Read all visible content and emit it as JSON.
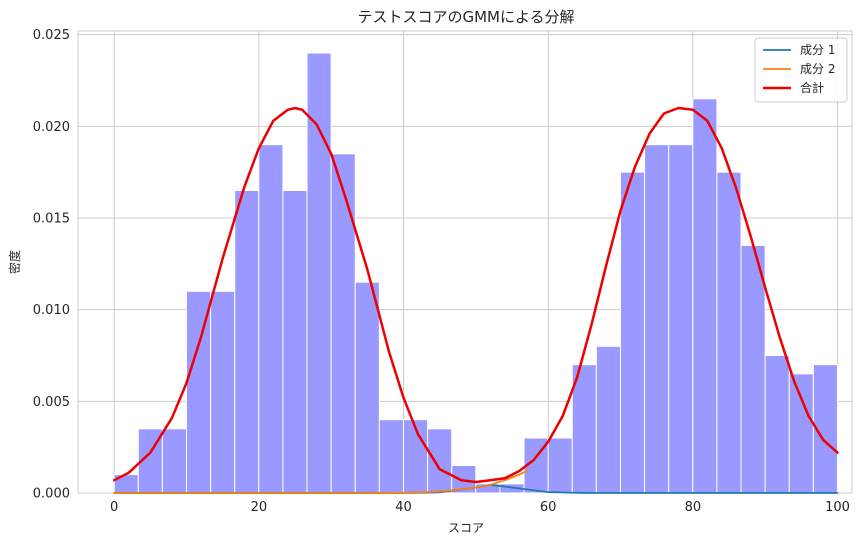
{
  "chart_data": {
    "type": "bar",
    "title": "テストスコアのGMMによる分解",
    "xlabel": "スコア",
    "ylabel": "密度",
    "xlim": [
      -5,
      102
    ],
    "ylim": [
      0,
      0.0252
    ],
    "xticks": [
      0,
      20,
      40,
      60,
      80,
      100
    ],
    "xtick_labels": [
      "0",
      "20",
      "40",
      "60",
      "80",
      "100"
    ],
    "yticks": [
      0,
      0.005,
      0.01,
      0.015,
      0.02,
      0.025
    ],
    "ytick_labels": [
      "0.000",
      "0.005",
      "0.010",
      "0.015",
      "0.020",
      "0.025"
    ],
    "grid": true,
    "legend_position": "top-right",
    "histogram": {
      "bin_width": 3.333,
      "bin_start": 0,
      "color": "#9999ff",
      "values": [
        0.001,
        0.0035,
        0.0035,
        0.011,
        0.011,
        0.0165,
        0.019,
        0.0165,
        0.024,
        0.0185,
        0.0115,
        0.004,
        0.004,
        0.0035,
        0.0015,
        0.0005,
        0.0005,
        0.003,
        0.003,
        0.007,
        0.008,
        0.0175,
        0.019,
        0.019,
        0.0215,
        0.0175,
        0.0135,
        0.0075,
        0.0065,
        0.007
      ]
    },
    "series": [
      {
        "name": "成分 1",
        "color": "#1f77b4",
        "type": "line",
        "x": [
          0,
          5,
          10,
          15,
          20,
          25,
          30,
          35,
          40,
          45,
          50,
          52,
          55,
          60,
          65,
          70,
          75,
          80,
          85,
          90,
          95,
          100
        ],
        "y": [
          0.0,
          0.0,
          0.0,
          0.0,
          0.0,
          0.0,
          0.0,
          0.0,
          0.0,
          4e-05,
          0.0003,
          0.00045,
          0.0003,
          5e-05,
          0.0,
          0.0,
          0.0,
          0.0,
          0.0,
          0.0,
          0.0,
          0.0
        ]
      },
      {
        "name": "成分 2",
        "color": "#ff7f0e",
        "type": "line",
        "x": [
          0,
          5,
          10,
          15,
          20,
          25,
          30,
          35,
          40,
          45,
          48,
          50,
          52,
          54,
          56,
          57
        ],
        "y": [
          0.0,
          0.0,
          0.0,
          0.0,
          0.0,
          0.0,
          0.0,
          0.0,
          1e-05,
          8e-05,
          0.0002,
          0.0003,
          0.00045,
          0.0007,
          0.001,
          0.0012
        ]
      },
      {
        "name": "合計",
        "color": "#ee0000",
        "type": "line",
        "x": [
          0,
          2,
          5,
          8,
          10,
          12,
          15,
          18,
          20,
          22,
          24,
          25,
          26,
          28,
          30,
          32,
          35,
          38,
          40,
          42,
          45,
          48,
          50,
          52,
          54,
          56,
          58,
          60,
          62,
          64,
          66,
          68,
          70,
          72,
          74,
          76,
          78,
          80,
          82,
          84,
          86,
          88,
          90,
          92,
          94,
          96,
          98,
          100
        ],
        "y": [
          0.0007,
          0.0011,
          0.0022,
          0.0041,
          0.006,
          0.0085,
          0.0128,
          0.0167,
          0.0188,
          0.0203,
          0.0209,
          0.021,
          0.0209,
          0.0201,
          0.0185,
          0.0161,
          0.0122,
          0.0077,
          0.0052,
          0.0032,
          0.0013,
          0.0007,
          0.0006,
          0.0007,
          0.0008,
          0.0012,
          0.0018,
          0.0028,
          0.0042,
          0.0063,
          0.0092,
          0.0124,
          0.0154,
          0.0178,
          0.0196,
          0.0207,
          0.021,
          0.0209,
          0.0203,
          0.0188,
          0.0166,
          0.014,
          0.0112,
          0.0085,
          0.0061,
          0.0042,
          0.0029,
          0.0022
        ]
      }
    ]
  }
}
